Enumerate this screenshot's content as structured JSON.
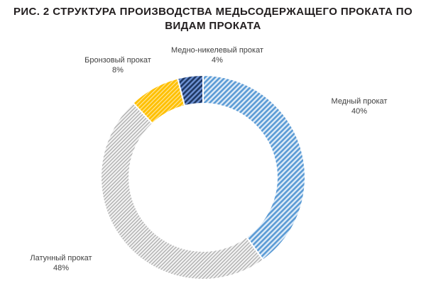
{
  "title": {
    "line1": "РИС. 2 СТРУКТУРА ПРОИЗВОДСТВА МЕДЬСОДЕРЖАЩЕГО ПРОКАТА ПО",
    "line2": "ВИДАМ ПРОКАТА"
  },
  "chart_data": {
    "type": "pie",
    "subtype": "donut",
    "title": "РИС. 2 СТРУКТУРА ПРОИЗВОДСТВА МЕДЬСОДЕРЖАЩЕГО ПРОКАТА ПО ВИДАМ ПРОКАТА",
    "unit": "%",
    "start_angle_deg": 0,
    "direction": "clockwise",
    "legend": "none",
    "separator_color": "#ffffff",
    "segments": [
      {
        "label": "Медный прокат",
        "value": 40,
        "pct": "40%",
        "pattern": "diagonal-hatch",
        "color_bg": "#DEEBF7",
        "color_stripe": "#5B9BD5"
      },
      {
        "label": "Латунный прокат",
        "value": 48,
        "pct": "48%",
        "pattern": "diagonal-hatch",
        "color_bg": "#F1F1F1",
        "color_stripe": "#A3A3A3"
      },
      {
        "label": "Бронзовый прокат",
        "value": 8,
        "pct": "8%",
        "pattern": "diagonal-hatch",
        "color_bg": "#FFC000",
        "color_stripe": "#FFE493"
      },
      {
        "label": "Медно-никелевый прокат",
        "value": 4,
        "pct": "4%",
        "pattern": "diagonal-hatch",
        "color_bg": "#6E92D4",
        "color_stripe": "#1F3864"
      }
    ]
  }
}
